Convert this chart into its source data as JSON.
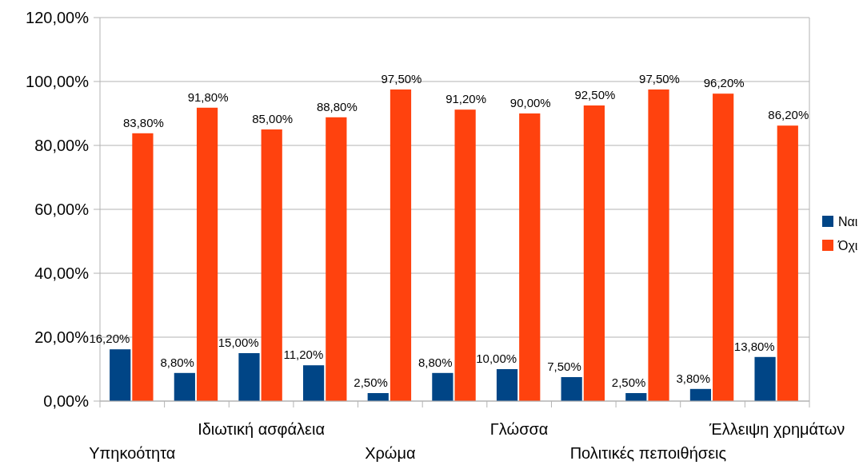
{
  "chart_data": {
    "type": "bar",
    "categories": [
      "Υπηκοότητα",
      null,
      "Ιδιωτική ασφάλεια",
      null,
      "Χρώμα",
      null,
      "Γλώσσα",
      null,
      "Πολιτικές πεποιθήσεις",
      null,
      "Έλλειψη χρημάτων"
    ],
    "series": [
      {
        "name": "Ναι",
        "color": "#004586",
        "values": [
          16.2,
          8.8,
          15.0,
          11.2,
          2.5,
          8.8,
          10.0,
          7.5,
          2.5,
          3.8,
          13.8
        ],
        "value_labels": [
          "16,20%",
          "8,80%",
          "15,00%",
          "11,20%",
          "2,50%",
          "8,80%",
          "10,00%",
          "7,50%",
          "2,50%",
          "3,80%",
          "13,80%"
        ]
      },
      {
        "name": "Όχι",
        "color": "#ff420e",
        "values": [
          83.8,
          91.8,
          85.0,
          88.8,
          97.5,
          91.2,
          90.0,
          92.5,
          97.5,
          96.2,
          86.2
        ],
        "value_labels": [
          "83,80%",
          "91,80%",
          "85,00%",
          "88,80%",
          "97,50%",
          "91,20%",
          "90,00%",
          "92,50%",
          "97,50%",
          "96,20%",
          "86,20%"
        ]
      }
    ],
    "ylim": [
      0,
      120
    ],
    "yticks": [
      {
        "value": 0,
        "label": "0,00%"
      },
      {
        "value": 20,
        "label": "20,00%"
      },
      {
        "value": 40,
        "label": "40,00%"
      },
      {
        "value": 60,
        "label": "60,00%"
      },
      {
        "value": 80,
        "label": "80,00%"
      },
      {
        "value": 100,
        "label": "100,00%"
      },
      {
        "value": 120,
        "label": "120,00%"
      }
    ],
    "grid": "y",
    "legend": "right"
  }
}
